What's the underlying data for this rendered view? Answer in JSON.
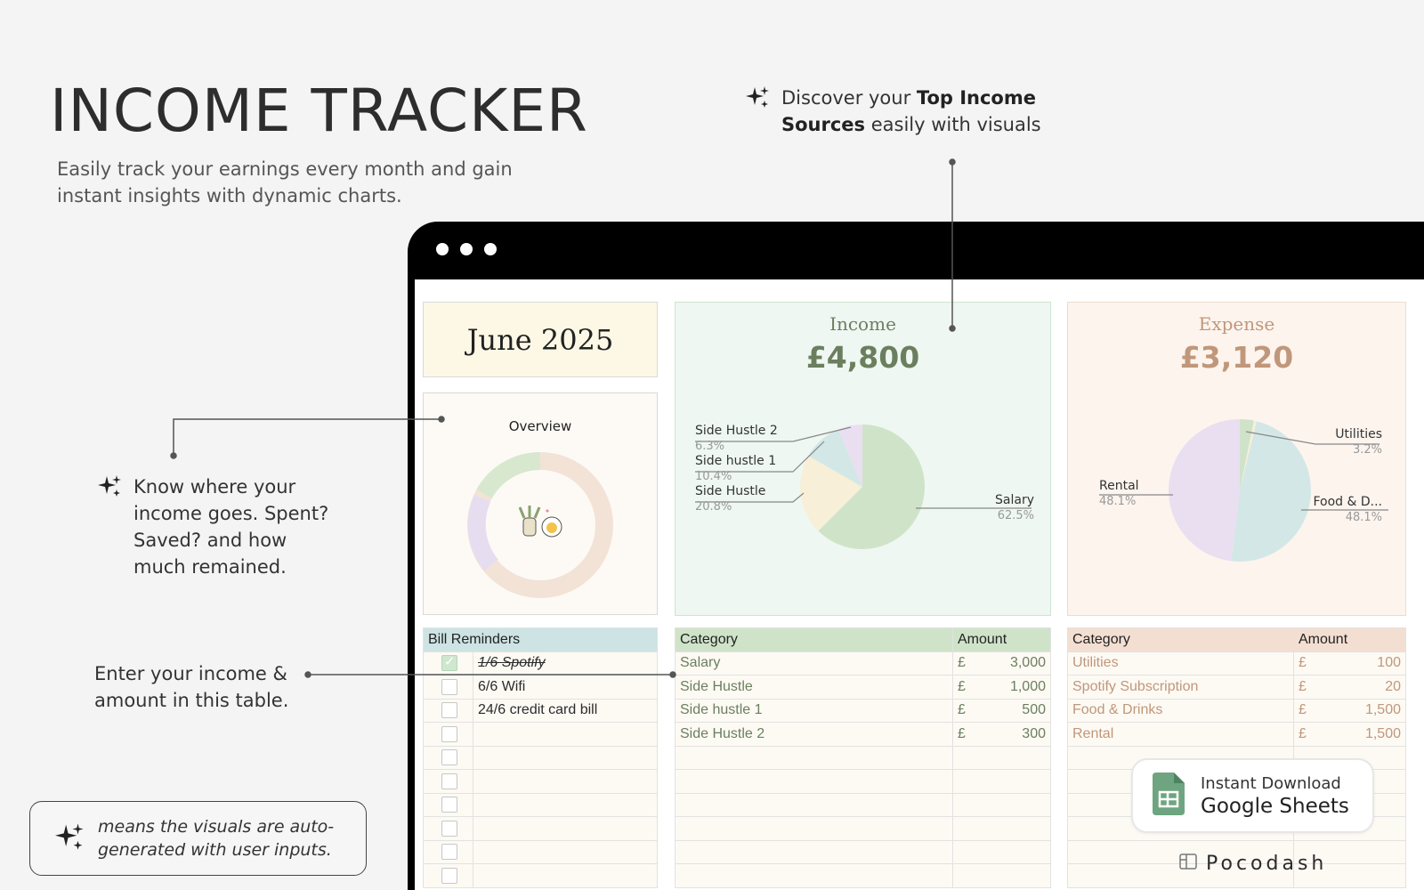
{
  "header": {
    "title": "INCOME TRACKER",
    "subtitle": "Easily track your earnings every month and gain instant insights with dynamic charts."
  },
  "callouts": {
    "top_prefix": "Discover your ",
    "top_bold": "Top Income Sources",
    "top_suffix": " easily with visuals",
    "left": "Know where your income goes. Spent? Saved? and how much remained.",
    "enter": "Enter your income & amount in this table.",
    "legend": "means the visuals are auto-generated with user inputs."
  },
  "dashboard": {
    "month": "June 2025",
    "overview_label": "Overview",
    "income": {
      "title": "Income",
      "amount": "£4,800",
      "slices": [
        {
          "label": "Salary",
          "pct": "62.5%",
          "value": 62.5,
          "color": "#cfe3c9"
        },
        {
          "label": "Side Hustle",
          "pct": "20.8%",
          "value": 20.8,
          "color": "#f7efd7"
        },
        {
          "label": "Side hustle 1",
          "pct": "10.4%",
          "value": 10.4,
          "color": "#d3e7e7"
        },
        {
          "label": "Side Hustle 2",
          "pct": "6.3%",
          "value": 6.3,
          "color": "#e9dff1"
        }
      ]
    },
    "expense": {
      "title": "Expense",
      "amount": "£3,120",
      "slices": [
        {
          "label": "Utilities",
          "pct": "3.2%",
          "value": 3.2,
          "color": "#cfe3c9"
        },
        {
          "label": "Spotify Subscription",
          "pct": "0.6%",
          "value": 0.6,
          "color": "#f7efd7"
        },
        {
          "label": "Food & D...",
          "pct": "48.1%",
          "value": 48.1,
          "color": "#d3e7e7"
        },
        {
          "label": "Rental",
          "pct": "48.1%",
          "value": 48.1,
          "color": "#e9dff1"
        }
      ]
    },
    "bills": {
      "header": "Bill Reminders",
      "items": [
        {
          "text": "1/6 Spotify",
          "done": true
        },
        {
          "text": "6/6 Wifi",
          "done": false
        },
        {
          "text": "24/6 credit card bill",
          "done": false
        },
        {
          "text": "",
          "done": false
        },
        {
          "text": "",
          "done": false
        },
        {
          "text": "",
          "done": false
        },
        {
          "text": "",
          "done": false
        },
        {
          "text": "",
          "done": false
        },
        {
          "text": "",
          "done": false
        },
        {
          "text": "",
          "done": false
        }
      ]
    },
    "income_table": {
      "col_category": "Category",
      "col_amount": "Amount",
      "currency": "£",
      "rows": [
        {
          "category": "Salary",
          "amount": "3,000"
        },
        {
          "category": "Side Hustle",
          "amount": "1,000"
        },
        {
          "category": "Side hustle 1",
          "amount": "500"
        },
        {
          "category": "Side Hustle 2",
          "amount": "300"
        }
      ]
    },
    "expense_table": {
      "col_category": "Category",
      "col_amount": "Amount",
      "currency": "£",
      "rows": [
        {
          "category": "Utilities",
          "amount": "100"
        },
        {
          "category": "Spotify Subscription",
          "amount": "20"
        },
        {
          "category": "Food & Drinks",
          "amount": "1,500"
        },
        {
          "category": "Rental",
          "amount": "1,500"
        }
      ]
    }
  },
  "download": {
    "line1": "Instant Download",
    "line2": "Google Sheets"
  },
  "brand": "Pocodash",
  "icons": {
    "sparkle": "sparkle-icon",
    "sheets": "google-sheets-icon",
    "brand_logo": "pocodash-logo-icon"
  },
  "colors": {
    "income_accent": "#6b7f5f",
    "expense_accent": "#c0977a",
    "frame": "#000000"
  }
}
